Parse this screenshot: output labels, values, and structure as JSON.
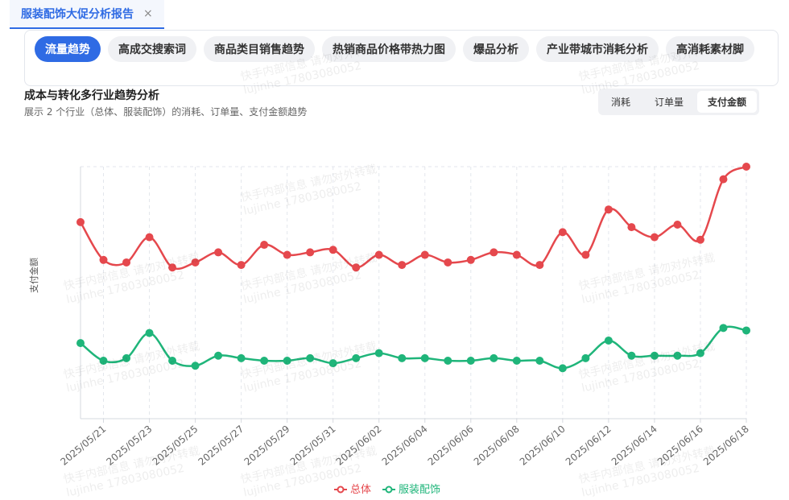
{
  "tab": {
    "title": "服装配饰大促分析报告",
    "close": "×"
  },
  "nav": [
    "流量趋势",
    "高成交搜索词",
    "商品类目销售趋势",
    "热销商品价格带热力图",
    "爆品分析",
    "产业带城市消耗分析",
    "高消耗素材脚"
  ],
  "section": {
    "title": "成本与转化多行业趋势分析",
    "subtitle": "展示 2 个行业（总体、服装配饰）的消耗、订单量、支付金额趋势"
  },
  "toggle": [
    "消耗",
    "订单量",
    "支付金额"
  ],
  "watermark": [
    "快手内部信息 请勿对外转载",
    "lujinhe 17803080052"
  ],
  "chart_data": {
    "type": "line",
    "ylabel": "支付金额",
    "categories": [
      null,
      "2025/05/21",
      null,
      "2025/05/23",
      null,
      "2025/05/25",
      null,
      "2025/05/27",
      null,
      "2025/05/29",
      null,
      "2025/05/31",
      null,
      "2025/06/02",
      null,
      "2025/06/04",
      null,
      "2025/06/06",
      null,
      "2025/06/08",
      null,
      "2025/06/10",
      null,
      "2025/06/12",
      null,
      "2025/06/14",
      null,
      "2025/06/16",
      null,
      "2025/06/18"
    ],
    "ylim": [
      0,
      100
    ],
    "grid": true,
    "legend": "bottom",
    "series": [
      {
        "name": "总体",
        "color": "#e5484d",
        "values": [
          78,
          63,
          62,
          72,
          60,
          62,
          66,
          61,
          69,
          65,
          66,
          67,
          60,
          65,
          61,
          65,
          62,
          63,
          66,
          65,
          61,
          74,
          65,
          83,
          76,
          72,
          77,
          71,
          95,
          100
        ]
      },
      {
        "name": "服装配饰",
        "color": "#1fb57a",
        "values": [
          30,
          23,
          24,
          34,
          23,
          21,
          25,
          24,
          23,
          23,
          24,
          22,
          24,
          26,
          24,
          24,
          23,
          23,
          24,
          23,
          23,
          20,
          24,
          31,
          25,
          25,
          25,
          26,
          36,
          35
        ]
      }
    ]
  }
}
